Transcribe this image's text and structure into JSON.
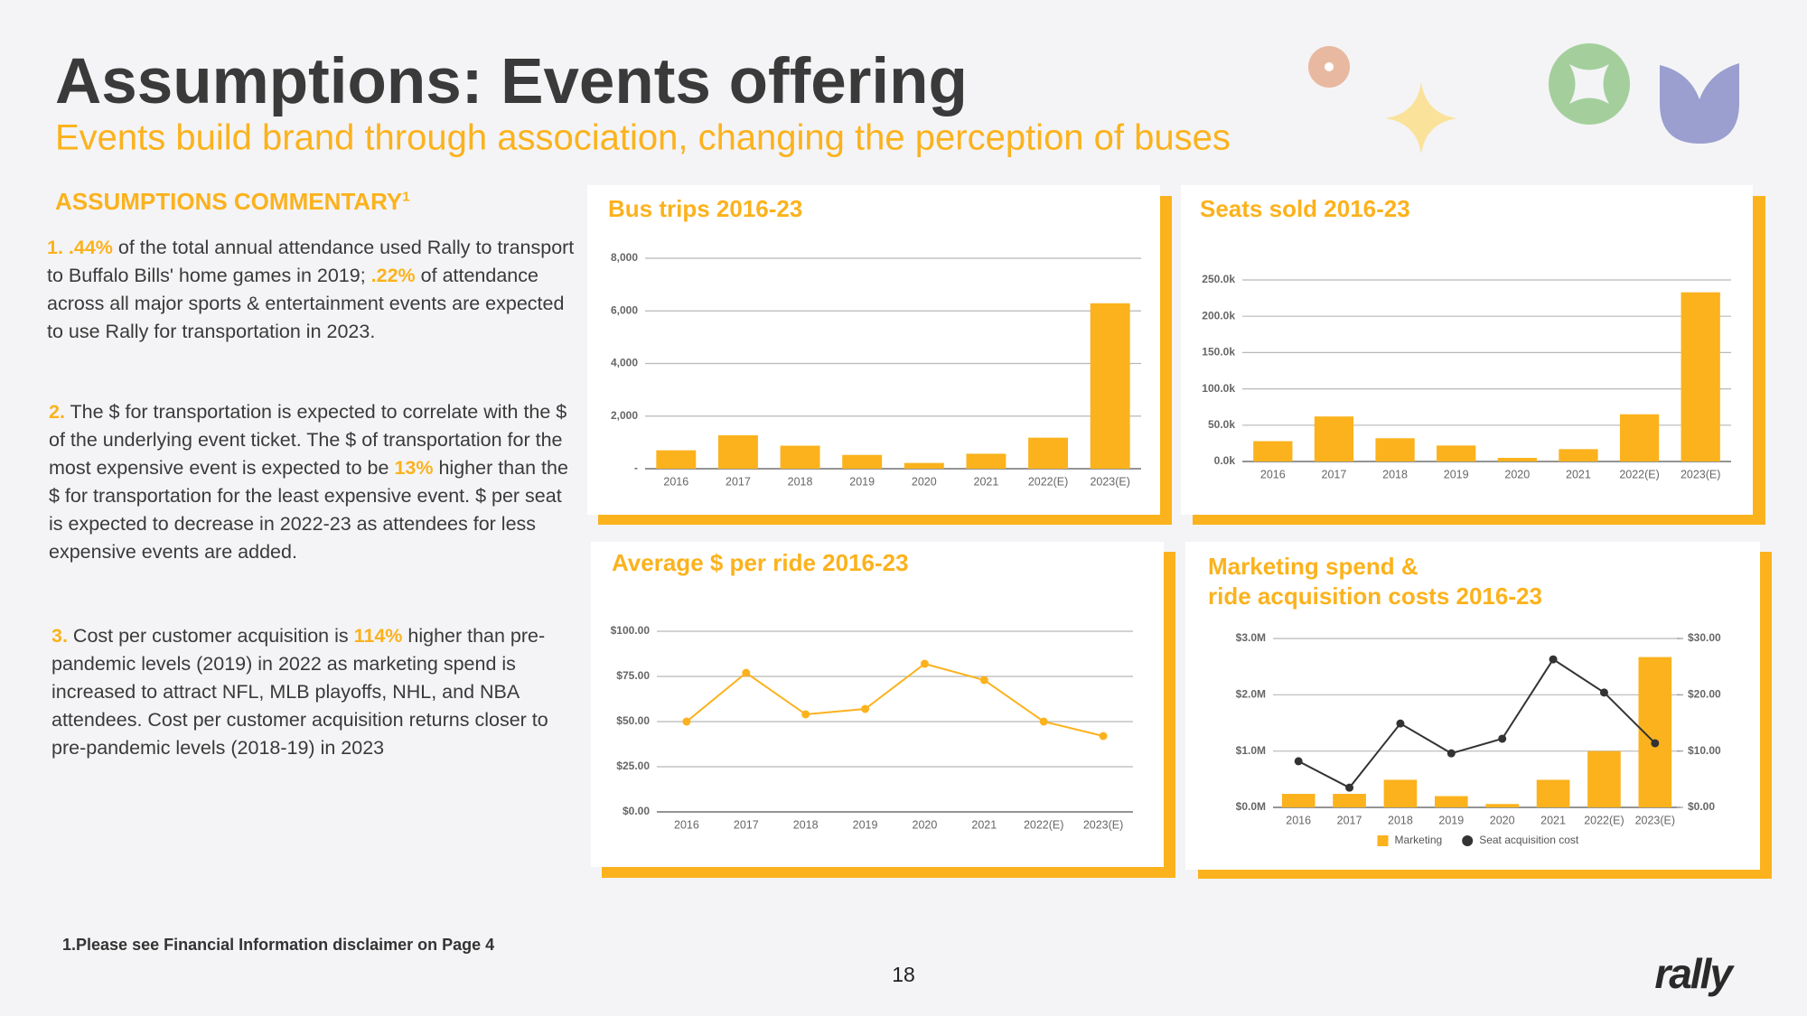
{
  "header": {
    "title": "Assumptions: Events offering",
    "subtitle": "Events build brand through association, changing the perception of buses"
  },
  "commentary": {
    "heading": "ASSUMPTIONS COMMENTARY",
    "heading_note": "1",
    "points": [
      [
        "1. .44%",
        " of the total annual attendance used Rally to transport to Buffalo Bills' home games in 2019; ",
        ".22%",
        " of attendance across all major sports & entertainment events are expected to use Rally for transportation in 2023."
      ],
      [
        "2.",
        " The $ for transportation is expected to correlate with the $ of the underlying event ticket. The $ of transportation for the most expensive event is expected to be ",
        "13%",
        " higher than the $ for transportation for the least expensive event. $ per seat is expected to decrease in 2022-23 as attendees for less expensive events are added."
      ],
      [
        "3.",
        " Cost per customer acquisition is ",
        "114%",
        " higher than pre-pandemic levels (2019) in 2022 as marketing spend is increased to attract NFL, MLB playoffs, NHL, and NBA attendees. Cost per customer acquisition returns closer to pre-pandemic levels (2018-19) in 2023"
      ]
    ]
  },
  "footnote": "1.Please see Financial Information disclaimer on Page 4",
  "page_number": "18",
  "logo": "rally",
  "chart_data": [
    {
      "type": "bar",
      "title": "Bus trips 2016-23",
      "categories": [
        "2016",
        "2017",
        "2018",
        "2019",
        "2020",
        "2021",
        "2022(E)",
        "2023(E)"
      ],
      "values": [
        700,
        1270,
        875,
        525,
        220,
        570,
        1180,
        6290
      ],
      "color": "#fbb21d",
      "ylim": [
        0,
        8000
      ],
      "yticks": [
        {
          "value": 0,
          "label": "-"
        },
        {
          "value": 2000,
          "label": "2,000"
        },
        {
          "value": 4000,
          "label": "4,000"
        },
        {
          "value": 6000,
          "label": "6,000"
        },
        {
          "value": 8000,
          "label": "8,000"
        }
      ],
      "grid": true
    },
    {
      "type": "bar",
      "title": "Seats sold 2016-23",
      "categories": [
        "2016",
        "2017",
        "2018",
        "2019",
        "2020",
        "2021",
        "2022(E)",
        "2023(E)"
      ],
      "values": [
        28000,
        62000,
        32000,
        22000,
        5000,
        17000,
        65000,
        233000
      ],
      "color": "#fbb21d",
      "ylim": [
        0,
        250000
      ],
      "yticks": [
        {
          "value": 0,
          "label": "0.0k"
        },
        {
          "value": 50000,
          "label": "50.0k"
        },
        {
          "value": 100000,
          "label": "100.0k"
        },
        {
          "value": 150000,
          "label": "150.0k"
        },
        {
          "value": 200000,
          "label": "200.0k"
        },
        {
          "value": 250000,
          "label": "250.0k"
        }
      ],
      "grid": true
    },
    {
      "type": "line",
      "title": "Average $ per ride 2016-23",
      "categories": [
        "2016",
        "2017",
        "2018",
        "2019",
        "2020",
        "2021",
        "2022(E)",
        "2023(E)"
      ],
      "values": [
        50,
        77,
        54,
        57,
        82,
        73,
        50,
        42
      ],
      "color": "#fbb21d",
      "ylim": [
        0,
        100
      ],
      "yticks": [
        {
          "value": 0,
          "label": "$0.00"
        },
        {
          "value": 25,
          "label": "$25.00"
        },
        {
          "value": 50,
          "label": "$50.00"
        },
        {
          "value": 75,
          "label": "$75.00"
        },
        {
          "value": 100,
          "label": "$100.00"
        }
      ],
      "grid": true
    },
    {
      "type": "combo",
      "title": [
        "Marketing spend &",
        "ride acquisition costs 2016-23"
      ],
      "categories": [
        "2016",
        "2017",
        "2018",
        "2019",
        "2020",
        "2021",
        "2022(E)",
        "2023(E)"
      ],
      "series": [
        {
          "name": "Marketing",
          "type": "bar",
          "color": "#fbb21d",
          "values": [
            240000,
            240000,
            490000,
            200000,
            60000,
            490000,
            1000000,
            2670000
          ]
        },
        {
          "name": "Seat acquisition cost",
          "type": "line",
          "axis": "y2",
          "color": "#333333",
          "values": [
            8.2,
            3.5,
            14.9,
            9.6,
            12.2,
            26.3,
            20.4,
            11.4
          ]
        }
      ],
      "ylim": [
        0,
        3000000
      ],
      "yticks": [
        {
          "value": 0,
          "label": "$0.0M"
        },
        {
          "value": 1000000,
          "label": "$1.0M"
        },
        {
          "value": 2000000,
          "label": "$2.0M"
        },
        {
          "value": 3000000,
          "label": "$3.0M"
        }
      ],
      "y2lim": [
        0,
        30
      ],
      "y2ticks": [
        {
          "value": 0,
          "label": "$0.00"
        },
        {
          "value": 10,
          "label": "$10.00"
        },
        {
          "value": 20,
          "label": "$20.00"
        },
        {
          "value": 30,
          "label": "$30.00"
        }
      ],
      "grid": true,
      "legend": "bottom"
    }
  ]
}
